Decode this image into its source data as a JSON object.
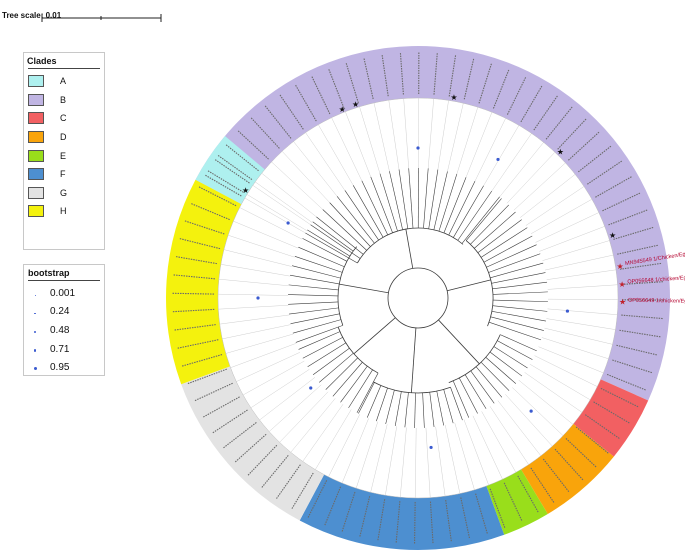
{
  "tree_scale": {
    "label": "Tree scale: 0.01"
  },
  "clade_legend": {
    "title": "Clades",
    "items": [
      {
        "name": "A",
        "color": "#aef0ef"
      },
      {
        "name": "B",
        "color": "#c0b5e3"
      },
      {
        "name": "C",
        "color": "#f26062"
      },
      {
        "name": "D",
        "color": "#f9a40b"
      },
      {
        "name": "E",
        "color": "#99de1b"
      },
      {
        "name": "F",
        "color": "#4d8fd0"
      },
      {
        "name": "G",
        "color": "#e3e3e3"
      },
      {
        "name": "H",
        "color": "#f4f20d"
      }
    ]
  },
  "bootstrap_legend": {
    "title": "bootstrap",
    "values": [
      "0.001",
      "0.24",
      "0.48",
      "0.71",
      "0.95"
    ]
  },
  "highlighted_leaves": [
    "MN945549 1/Chicken/Egypt/EGY-B/2021",
    "OP056648 1/chicken/Egypt/EGY-B/2022",
    "OP056649 1/chicken/Egypt/EGY-1/2021"
  ]
}
